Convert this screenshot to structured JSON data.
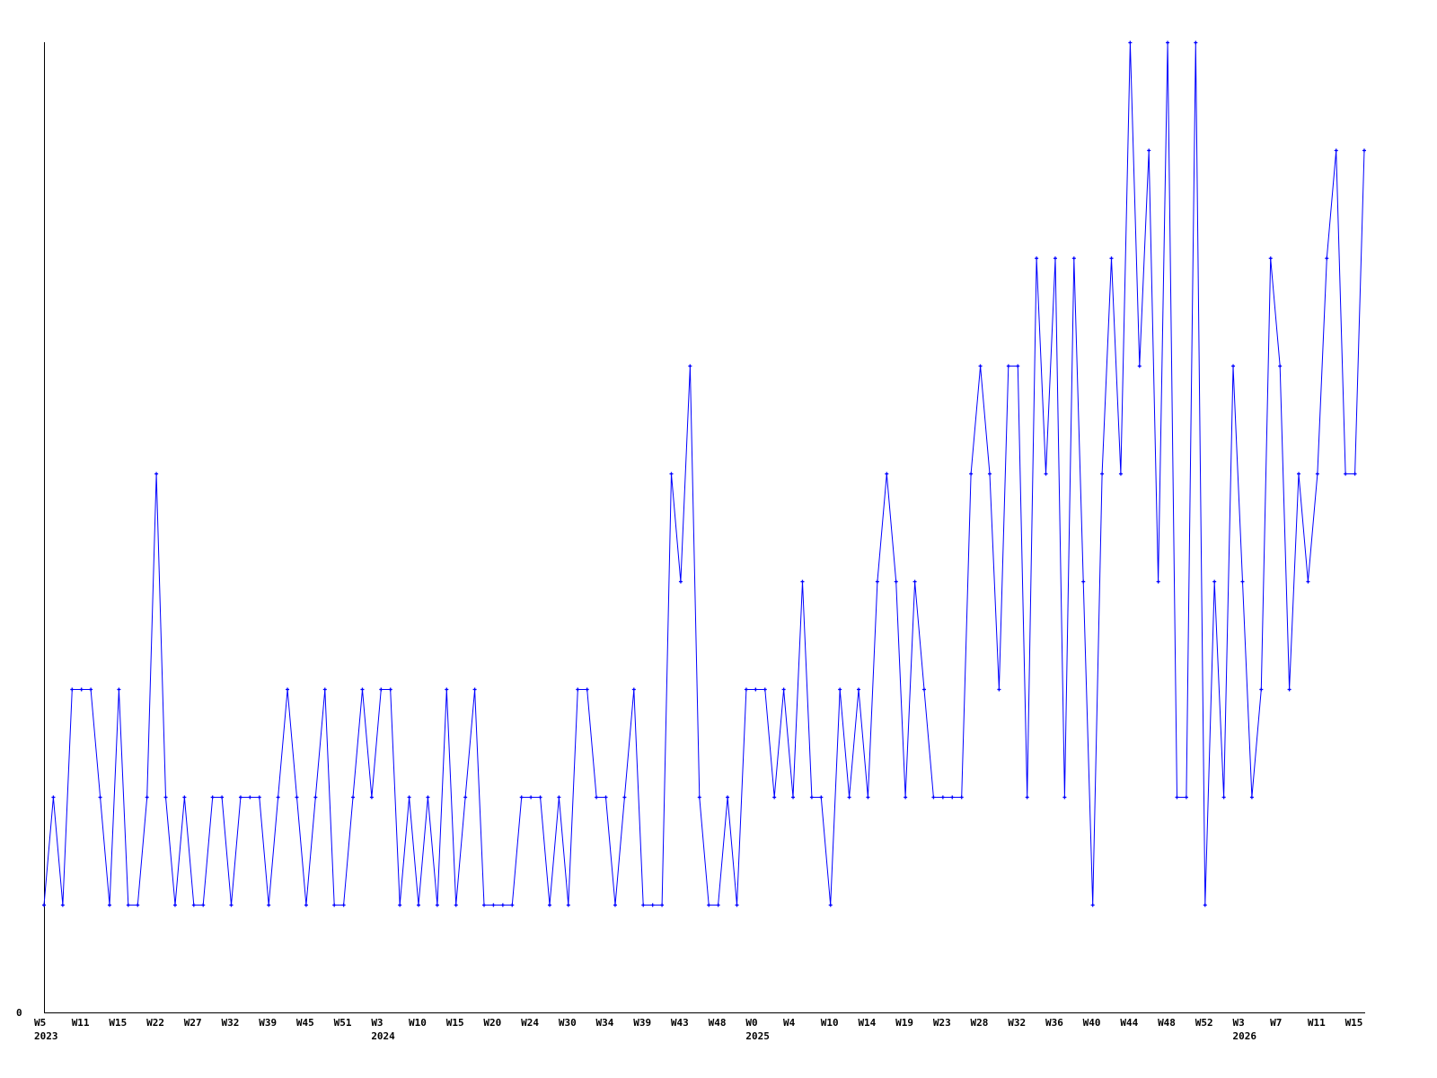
{
  "chart_data": {
    "type": "line",
    "title": "",
    "xlabel": "",
    "ylabel": "",
    "ylim": [
      0,
      9
    ],
    "y_tick_labels": [
      {
        "value": 0,
        "label": "0"
      }
    ],
    "grid": false,
    "line_color": "#0000ff",
    "axis_color": "#000000",
    "x_tick_labels": [
      {
        "index": 0,
        "label": "W5"
      },
      {
        "index": 4,
        "label": "W11"
      },
      {
        "index": 8,
        "label": "W15"
      },
      {
        "index": 12,
        "label": "W22"
      },
      {
        "index": 16,
        "label": "W27"
      },
      {
        "index": 20,
        "label": "W32"
      },
      {
        "index": 24,
        "label": "W39"
      },
      {
        "index": 28,
        "label": "W45"
      },
      {
        "index": 32,
        "label": "W51"
      },
      {
        "index": 36,
        "label": "W3"
      },
      {
        "index": 40,
        "label": "W10"
      },
      {
        "index": 44,
        "label": "W15"
      },
      {
        "index": 48,
        "label": "W20"
      },
      {
        "index": 52,
        "label": "W24"
      },
      {
        "index": 56,
        "label": "W30"
      },
      {
        "index": 60,
        "label": "W34"
      },
      {
        "index": 64,
        "label": "W39"
      },
      {
        "index": 68,
        "label": "W43"
      },
      {
        "index": 72,
        "label": "W48"
      },
      {
        "index": 76,
        "label": "W0"
      },
      {
        "index": 80,
        "label": "W4"
      },
      {
        "index": 84,
        "label": "W10"
      },
      {
        "index": 88,
        "label": "W14"
      },
      {
        "index": 92,
        "label": "W19"
      },
      {
        "index": 96,
        "label": "W23"
      },
      {
        "index": 100,
        "label": "W28"
      },
      {
        "index": 104,
        "label": "W32"
      },
      {
        "index": 108,
        "label": "W36"
      },
      {
        "index": 112,
        "label": "W40"
      },
      {
        "index": 116,
        "label": "W44"
      },
      {
        "index": 120,
        "label": "W48"
      },
      {
        "index": 124,
        "label": "W52"
      },
      {
        "index": 128,
        "label": "W3"
      },
      {
        "index": 132,
        "label": "W7"
      },
      {
        "index": 136,
        "label": "W11"
      },
      {
        "index": 140,
        "label": "W15"
      }
    ],
    "year_labels": [
      {
        "index": 0,
        "label": "2023"
      },
      {
        "index": 36,
        "label": "2024"
      },
      {
        "index": 76,
        "label": "2025"
      },
      {
        "index": 128,
        "label": "2026"
      }
    ],
    "values": [
      1,
      2,
      1,
      3,
      3,
      3,
      2,
      1,
      3,
      1,
      1,
      2,
      5,
      2,
      1,
      2,
      1,
      1,
      2,
      2,
      1,
      2,
      2,
      2,
      1,
      2,
      3,
      2,
      1,
      2,
      3,
      1,
      1,
      2,
      3,
      2,
      3,
      3,
      1,
      2,
      1,
      2,
      1,
      3,
      1,
      2,
      3,
      1,
      1,
      1,
      1,
      2,
      2,
      2,
      1,
      2,
      1,
      3,
      3,
      2,
      2,
      1,
      2,
      3,
      1,
      1,
      1,
      5,
      4,
      6,
      2,
      1,
      1,
      2,
      1,
      3,
      3,
      3,
      2,
      3,
      2,
      4,
      2,
      2,
      1,
      3,
      2,
      3,
      2,
      4,
      5,
      4,
      2,
      4,
      3,
      2,
      2,
      2,
      2,
      5,
      6,
      5,
      3,
      6,
      6,
      2,
      7,
      5,
      7,
      2,
      7,
      4,
      1,
      5,
      7,
      5,
      9,
      6,
      8,
      4,
      9,
      2,
      2,
      9,
      1,
      4,
      2,
      6,
      4,
      2,
      3,
      7,
      6,
      3,
      5,
      4,
      5,
      7,
      8,
      5,
      5,
      8
    ]
  }
}
